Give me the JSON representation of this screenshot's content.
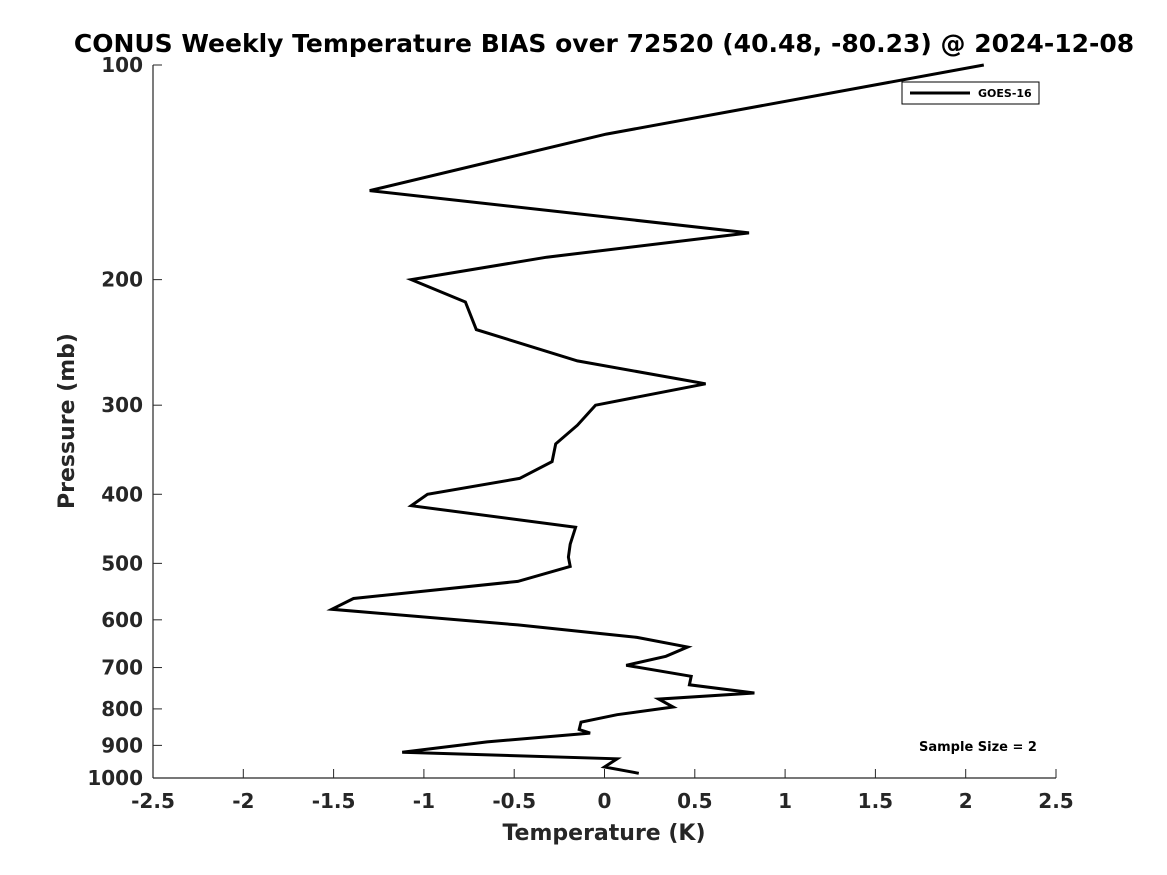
{
  "chart_data": {
    "type": "line",
    "title": "CONUS Weekly Temperature BIAS over 72520 (40.48, -80.23) @ 2024-12-08",
    "xlabel": "Temperature (K)",
    "ylabel": "Pressure (mb)",
    "xlim": [
      -2.5,
      2.5
    ],
    "ylim": [
      100,
      1000
    ],
    "yscale": "log",
    "yreversed": true,
    "xticks": [
      -2.5,
      -2,
      -1.5,
      -1,
      -0.5,
      0,
      0.5,
      1,
      1.5,
      2,
      2.5
    ],
    "xtick_labels": [
      "-2.5",
      "-2",
      "-1.5",
      "-1",
      "-0.5",
      "0",
      "0.5",
      "1",
      "1.5",
      "2",
      "2.5"
    ],
    "yticks": [
      100,
      200,
      300,
      400,
      500,
      600,
      700,
      800,
      900,
      1000
    ],
    "ytick_labels": [
      "100",
      "200",
      "300",
      "400",
      "500",
      "600",
      "700",
      "800",
      "900",
      "1000"
    ],
    "grid": false,
    "legend_position": "top-right",
    "annotation": "Sample Size = 2",
    "series": [
      {
        "name": "GOES-16",
        "color": "#000000",
        "x": [
          2.1,
          0.01,
          -1.3,
          0.8,
          -0.32,
          -1.07,
          -0.77,
          -0.71,
          -0.15,
          0.56,
          -0.05,
          -0.15,
          -0.27,
          -0.29,
          -0.47,
          -0.98,
          -1.07,
          -0.16,
          -0.19,
          -0.2,
          -0.19,
          -0.48,
          -1.39,
          -1.51,
          -0.48,
          0.18,
          0.46,
          0.34,
          0.12,
          0.48,
          0.47,
          0.83,
          0.3,
          0.38,
          0.07,
          -0.13,
          -0.14,
          -0.08,
          -0.65,
          -1.12,
          0.07,
          0.0,
          0.19
        ],
        "y": [
          100,
          125,
          150,
          172,
          186,
          200,
          215,
          235,
          260,
          280,
          300,
          320,
          340,
          360,
          380,
          400,
          415,
          445,
          470,
          490,
          505,
          530,
          560,
          580,
          610,
          635,
          655,
          675,
          695,
          720,
          740,
          760,
          775,
          795,
          815,
          835,
          855,
          865,
          890,
          920,
          940,
          965,
          985
        ]
      }
    ]
  }
}
